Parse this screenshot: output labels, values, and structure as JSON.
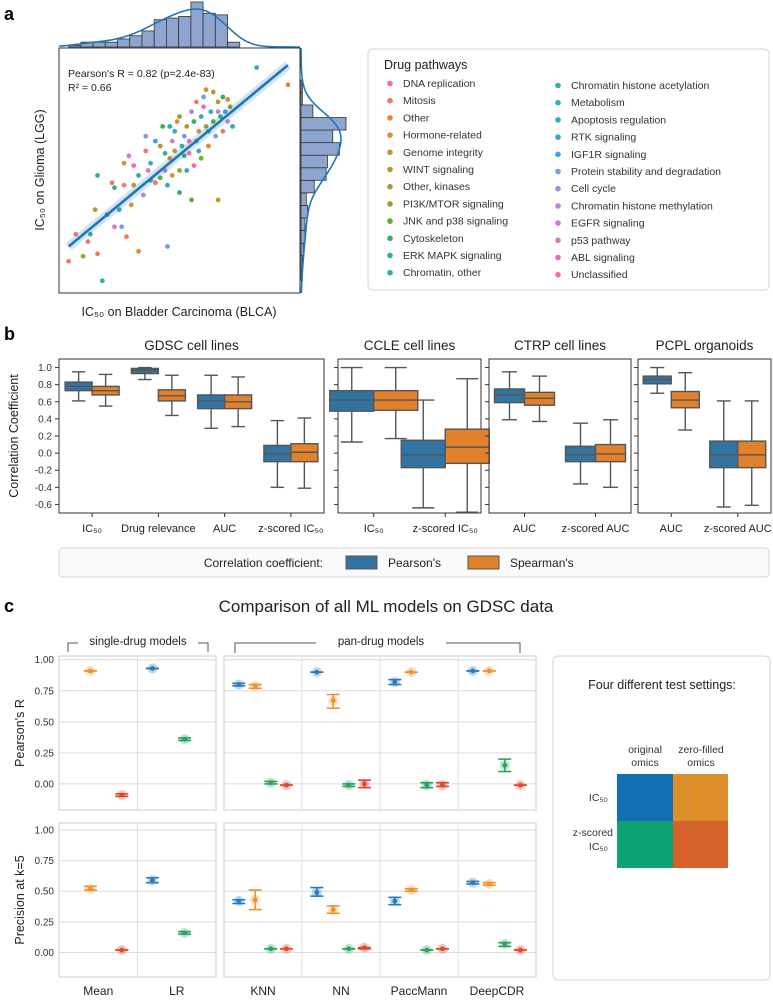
{
  "panel_labels": {
    "a": "a",
    "b": "b",
    "c": "c"
  },
  "chart_data": [
    {
      "type": "scatter",
      "annotation": [
        "Pearson's R = 0.82 (p=2.4e-83)",
        "R² = 0.66"
      ],
      "xlabel": "IC₅₀ on Bladder Carcinoma (BLCA)",
      "ylabel": "IC₅₀ on Glioma (LGG)",
      "ticks_shown": false,
      "regression": {
        "x": [
          4,
          95
        ],
        "y": [
          19,
          93
        ],
        "color": "#1f77b4"
      },
      "histogram_color": "#8ea5cf",
      "x_marginal_counts": [
        1,
        3,
        3,
        3,
        5,
        7,
        10,
        17,
        18,
        19,
        28,
        21,
        20,
        3
      ],
      "y_marginal_counts": [
        1,
        1,
        2,
        3,
        3,
        5,
        4,
        10,
        19,
        20,
        29,
        24,
        34,
        9,
        1,
        1
      ],
      "legend": {
        "title": "Drug pathways",
        "categories": [
          "DNA replication",
          "Mitosis",
          "Other",
          "Hormone-related",
          "Genome integrity",
          "WINT signaling",
          "Other, kinases",
          "PI3K/MTOR signaling",
          "JNK and p38 signaling",
          "Cytoskeleton",
          "ERK MAPK signaling",
          "Chromatin, other",
          "Chromatin histone acetylation",
          "Metabolism",
          "Apoptosis regulation",
          "RTK signaling",
          "IGF1R signaling",
          "Protein stability and degradation",
          "Cell cycle",
          "Chromatin histone methylation",
          "EGFR signaling",
          "p53 pathway",
          "ABL signaling",
          "Unclassified"
        ],
        "colors": [
          "#f77189",
          "#f67860",
          "#e8853a",
          "#d98f33",
          "#c69532",
          "#b29c31",
          "#9ea331",
          "#83a931",
          "#5bae3a",
          "#33b064",
          "#34af86",
          "#35ad99",
          "#36ada6",
          "#37abb2",
          "#38aabd",
          "#3aa6d1",
          "#3ea0e6",
          "#7c9ae6",
          "#9a90e0",
          "#b388dc",
          "#c97fd1",
          "#dd77c0",
          "#ec6db4",
          "#f66bac"
        ]
      },
      "points": [
        [
          82,
          92,
          13
        ],
        [
          95,
          85,
          2
        ],
        [
          61,
          83,
          4
        ],
        [
          4,
          13,
          1
        ],
        [
          18,
          5,
          12
        ],
        [
          45,
          19,
          17
        ],
        [
          16,
          48,
          12
        ],
        [
          66,
          38,
          5
        ],
        [
          55,
          38,
          8
        ],
        [
          50,
          41,
          9
        ],
        [
          15,
          34,
          6
        ],
        [
          7,
          24,
          0
        ],
        [
          12,
          21,
          0
        ],
        [
          16,
          16,
          1
        ],
        [
          28,
          23,
          1
        ],
        [
          33,
          17,
          2
        ],
        [
          23,
          27,
          21
        ],
        [
          26,
          27,
          17
        ],
        [
          22,
          45,
          1
        ],
        [
          23,
          43,
          11
        ],
        [
          27,
          44,
          0
        ],
        [
          31,
          44,
          4
        ],
        [
          27,
          53,
          3
        ],
        [
          29,
          56,
          20
        ],
        [
          31,
          52,
          22
        ],
        [
          33,
          48,
          10
        ],
        [
          36,
          64,
          18
        ],
        [
          36,
          58,
          1
        ],
        [
          43,
          68,
          9
        ],
        [
          38,
          53,
          13
        ],
        [
          40,
          62,
          16
        ],
        [
          42,
          60,
          5
        ],
        [
          44,
          57,
          11
        ],
        [
          46,
          55,
          3
        ],
        [
          47,
          62,
          20
        ],
        [
          48,
          66,
          14
        ],
        [
          49,
          70,
          2
        ],
        [
          50,
          72,
          7
        ],
        [
          51,
          60,
          12
        ],
        [
          52,
          64,
          17
        ],
        [
          53,
          68,
          5
        ],
        [
          54,
          57,
          0
        ],
        [
          55,
          74,
          19
        ],
        [
          56,
          70,
          9
        ],
        [
          57,
          62,
          15
        ],
        [
          58,
          66,
          3
        ],
        [
          59,
          72,
          11
        ],
        [
          60,
          76,
          22
        ],
        [
          61,
          68,
          6
        ],
        [
          62,
          60,
          2
        ],
        [
          63,
          74,
          14
        ],
        [
          64,
          70,
          8
        ],
        [
          65,
          64,
          18
        ],
        [
          66,
          78,
          4
        ],
        [
          67,
          72,
          10
        ],
        [
          68,
          66,
          1
        ],
        [
          69,
          74,
          16
        ],
        [
          70,
          70,
          21
        ],
        [
          71,
          76,
          7
        ],
        [
          72,
          68,
          13
        ],
        [
          60,
          80,
          17
        ],
        [
          64,
          82,
          5
        ],
        [
          68,
          80,
          9
        ],
        [
          70,
          79,
          2
        ],
        [
          66,
          74,
          20
        ],
        [
          58,
          58,
          12
        ],
        [
          56,
          52,
          22
        ],
        [
          53,
          50,
          14
        ],
        [
          50,
          50,
          6
        ],
        [
          47,
          48,
          3
        ],
        [
          44,
          50,
          19
        ],
        [
          42,
          47,
          8
        ],
        [
          40,
          45,
          1
        ],
        [
          38,
          46,
          15
        ],
        [
          52,
          56,
          10
        ],
        [
          54,
          62,
          23
        ],
        [
          48,
          58,
          4
        ],
        [
          46,
          68,
          11
        ],
        [
          62,
          66,
          16
        ],
        [
          57,
          78,
          0
        ],
        [
          59,
          55,
          7
        ],
        [
          45,
          44,
          13
        ],
        [
          35,
          40,
          18
        ],
        [
          30,
          36,
          2
        ],
        [
          20,
          32,
          9
        ],
        [
          25,
          34,
          14
        ],
        [
          13,
          24,
          10
        ],
        [
          10,
          15,
          5
        ],
        [
          37,
          50,
          21
        ]
      ]
    },
    {
      "type": "box",
      "ylabel": "Correlation Coefficient",
      "ylim": [
        -0.7,
        1.1
      ],
      "yticks": [
        "1.0",
        "0.8",
        "0.6",
        "0.4",
        "0.2",
        "0.0",
        "-0.2",
        "-0.4",
        "-0.6"
      ],
      "legend_title": "Correlation coefficient:",
      "series": [
        "Pearson's",
        "Spearman's"
      ],
      "colors": [
        "#3274a1",
        "#e1812c"
      ],
      "box_format": [
        "whisker_low",
        "q1",
        "median",
        "q3",
        "whisker_high"
      ],
      "panels": [
        {
          "title": "GDSC cell lines",
          "categories": [
            {
              "label": "IC₅₀",
              "boxes": [
                [
                  0.61,
                  0.73,
                  0.78,
                  0.83,
                  0.95
                ],
                [
                  0.55,
                  0.68,
                  0.73,
                  0.78,
                  0.92
                ]
              ]
            },
            {
              "label": "Drug relevance",
              "boxes": [
                [
                  0.86,
                  0.93,
                  0.97,
                  0.99,
                  1.0
                ],
                [
                  0.44,
                  0.61,
                  0.67,
                  0.74,
                  0.91
                ]
              ]
            },
            {
              "label": "AUC",
              "boxes": [
                [
                  0.29,
                  0.52,
                  0.61,
                  0.68,
                  0.91
                ],
                [
                  0.31,
                  0.52,
                  0.6,
                  0.68,
                  0.89
                ]
              ]
            },
            {
              "label": "z-scored IC₅₀",
              "boxes": [
                [
                  -0.4,
                  -0.1,
                  -0.01,
                  0.09,
                  0.38
                ],
                [
                  -0.41,
                  -0.1,
                  0.01,
                  0.11,
                  0.41
                ]
              ]
            }
          ]
        },
        {
          "title": "CCLE cell lines",
          "categories": [
            {
              "label": "IC₅₀",
              "boxes": [
                [
                  0.13,
                  0.49,
                  0.62,
                  0.73,
                  1.0
                ],
                [
                  0.17,
                  0.5,
                  0.62,
                  0.73,
                  1.0
                ]
              ]
            },
            {
              "label": "z-scored IC₅₀",
              "boxes": [
                [
                  -0.64,
                  -0.17,
                  -0.02,
                  0.15,
                  0.62
                ],
                [
                  -0.69,
                  -0.12,
                  0.07,
                  0.28,
                  0.87
                ]
              ]
            }
          ]
        },
        {
          "title": "CTRP cell lines",
          "categories": [
            {
              "label": "AUC",
              "boxes": [
                [
                  0.39,
                  0.59,
                  0.68,
                  0.75,
                  0.95
                ],
                [
                  0.37,
                  0.56,
                  0.64,
                  0.71,
                  0.9
                ]
              ]
            },
            {
              "label": "z-scored AUC",
              "boxes": [
                [
                  -0.36,
                  -0.1,
                  -0.02,
                  0.08,
                  0.35
                ],
                [
                  -0.4,
                  -0.1,
                  -0.01,
                  0.1,
                  0.39
                ]
              ]
            }
          ]
        },
        {
          "title": "PCPL organoids",
          "categories": [
            {
              "label": "AUC",
              "boxes": [
                [
                  0.7,
                  0.81,
                  0.86,
                  0.9,
                  1.0
                ],
                [
                  0.27,
                  0.53,
                  0.62,
                  0.72,
                  0.94
                ]
              ]
            },
            {
              "label": "z-scored AUC",
              "boxes": [
                [
                  -0.63,
                  -0.17,
                  -0.02,
                  0.14,
                  0.61
                ],
                [
                  -0.61,
                  -0.17,
                  -0.02,
                  0.14,
                  0.61
                ]
              ]
            }
          ]
        }
      ]
    },
    {
      "type": "scatter",
      "title": "Comparison of all ML models on GDSC data",
      "groups": [
        "single-drug models",
        "pan-drug models"
      ],
      "ylabels": [
        "Pearson's R",
        "Precision at k=5"
      ],
      "yticks": [
        "1.00",
        "0.75",
        "0.50",
        "0.25",
        "0.00"
      ],
      "ylim": [
        -0.2,
        1.05
      ],
      "grid": true,
      "value_format": [
        "mean",
        "low",
        "high"
      ],
      "setting_colors": [
        "#2b7bba",
        "#f0922b",
        "#2ca25f",
        "#e2452f"
      ],
      "models": [
        {
          "name": "Mean",
          "group": 0,
          "pearson": [
            null,
            [
              0.91,
              0.91,
              0.91
            ],
            null,
            [
              -0.09,
              -0.1,
              -0.08
            ]
          ],
          "precision": [
            null,
            [
              0.52,
              0.51,
              0.54
            ],
            null,
            [
              0.02,
              0.02,
              0.02
            ]
          ]
        },
        {
          "name": "LR",
          "group": 0,
          "pearson": [
            [
              0.93,
              0.93,
              0.93
            ],
            null,
            [
              0.36,
              0.35,
              0.37
            ],
            null
          ],
          "precision": [
            [
              0.59,
              0.57,
              0.61
            ],
            null,
            [
              0.16,
              0.15,
              0.17
            ],
            null
          ]
        },
        {
          "name": "KNN",
          "group": 1,
          "pearson": [
            [
              0.8,
              0.79,
              0.81
            ],
            [
              0.79,
              0.77,
              0.8
            ],
            [
              0.01,
              0.0,
              0.02
            ],
            [
              -0.01,
              -0.01,
              -0.01
            ]
          ],
          "precision": [
            [
              0.42,
              0.4,
              0.43
            ],
            [
              0.43,
              0.35,
              0.51
            ],
            [
              0.03,
              0.03,
              0.03
            ],
            [
              0.03,
              0.03,
              0.03
            ]
          ]
        },
        {
          "name": "NN",
          "group": 1,
          "pearson": [
            [
              0.9,
              0.9,
              0.9
            ],
            [
              0.67,
              0.61,
              0.72
            ],
            [
              -0.01,
              -0.02,
              0.0
            ],
            [
              0.0,
              -0.03,
              0.03
            ]
          ],
          "precision": [
            [
              0.49,
              0.46,
              0.53
            ],
            [
              0.35,
              0.32,
              0.38
            ],
            [
              0.03,
              0.03,
              0.03
            ],
            [
              0.04,
              0.03,
              0.04
            ]
          ]
        },
        {
          "name": "PaccMann",
          "group": 1,
          "pearson": [
            [
              0.82,
              0.8,
              0.84
            ],
            [
              0.9,
              0.9,
              0.9
            ],
            [
              -0.01,
              -0.03,
              0.01
            ],
            [
              -0.01,
              -0.02,
              0.01
            ]
          ],
          "precision": [
            [
              0.42,
              0.39,
              0.45
            ],
            [
              0.51,
              0.5,
              0.52
            ],
            [
              0.02,
              0.02,
              0.02
            ],
            [
              0.03,
              0.03,
              0.03
            ]
          ]
        },
        {
          "name": "DeepCDR",
          "group": 1,
          "pearson": [
            [
              0.91,
              0.91,
              0.91
            ],
            [
              0.91,
              0.91,
              0.91
            ],
            [
              0.15,
              0.1,
              0.2
            ],
            [
              -0.01,
              -0.01,
              -0.01
            ]
          ],
          "precision": [
            [
              0.57,
              0.56,
              0.58
            ],
            [
              0.56,
              0.55,
              0.57
            ],
            [
              0.07,
              0.05,
              0.08
            ],
            [
              0.02,
              0.02,
              0.02
            ]
          ]
        }
      ],
      "settings_legend": {
        "title": "Four different test settings:",
        "columns": [
          [
            "original",
            "omics"
          ],
          [
            "zero-filled",
            "omics"
          ]
        ],
        "rows": [
          [
            "IC₅₀"
          ],
          [
            "z-scored",
            "IC₅₀"
          ]
        ],
        "colors": [
          [
            "#1170b2",
            "#dd8f2b"
          ],
          [
            "#0ea173",
            "#d5622a"
          ]
        ]
      }
    }
  ]
}
